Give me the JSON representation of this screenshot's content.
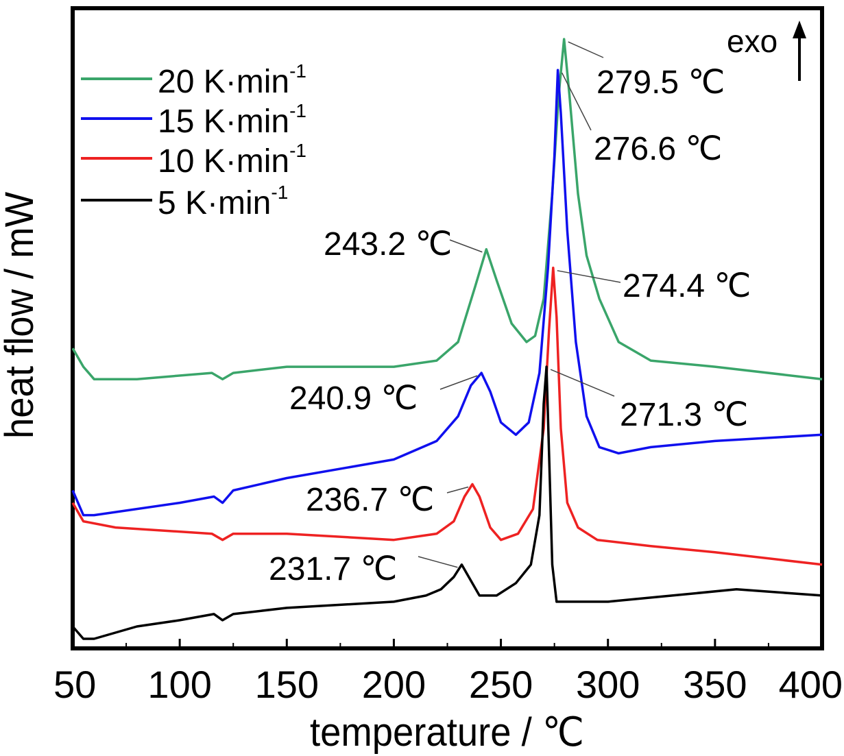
{
  "chart_data": {
    "type": "line",
    "xlabel": "temperature / ℃",
    "ylabel": "heat flow / mW",
    "xlim": [
      50,
      400
    ],
    "x_ticks": [
      50,
      100,
      150,
      200,
      250,
      300,
      350,
      400
    ],
    "y_ticks_shown": false,
    "grid": false,
    "legend_position": "top-left",
    "direction_label": "exo",
    "series": [
      {
        "name": "20 K·min",
        "superscript": "-1",
        "color": "#3aa56a",
        "points": [
          [
            50,
            0.47
          ],
          [
            55,
            0.44
          ],
          [
            60,
            0.42
          ],
          [
            80,
            0.42
          ],
          [
            115,
            0.43
          ],
          [
            120,
            0.42
          ],
          [
            125,
            0.43
          ],
          [
            150,
            0.44
          ],
          [
            200,
            0.44
          ],
          [
            220,
            0.45
          ],
          [
            230,
            0.48
          ],
          [
            238,
            0.57
          ],
          [
            243.2,
            0.63
          ],
          [
            248,
            0.58
          ],
          [
            255,
            0.51
          ],
          [
            262,
            0.48
          ],
          [
            266,
            0.49
          ],
          [
            270,
            0.55
          ],
          [
            274,
            0.72
          ],
          [
            277,
            0.88
          ],
          [
            279.5,
            0.97
          ],
          [
            282,
            0.88
          ],
          [
            286,
            0.72
          ],
          [
            290,
            0.62
          ],
          [
            296,
            0.55
          ],
          [
            305,
            0.48
          ],
          [
            320,
            0.45
          ],
          [
            350,
            0.44
          ],
          [
            400,
            0.42
          ]
        ]
      },
      {
        "name": "15 K·min",
        "superscript": "-1",
        "color": "#1010ee",
        "points": [
          [
            50,
            0.24
          ],
          [
            55,
            0.2
          ],
          [
            60,
            0.2
          ],
          [
            100,
            0.22
          ],
          [
            116,
            0.23
          ],
          [
            120,
            0.22
          ],
          [
            125,
            0.24
          ],
          [
            150,
            0.26
          ],
          [
            200,
            0.29
          ],
          [
            220,
            0.32
          ],
          [
            230,
            0.36
          ],
          [
            236,
            0.41
          ],
          [
            240.9,
            0.43
          ],
          [
            245,
            0.4
          ],
          [
            250,
            0.35
          ],
          [
            257,
            0.33
          ],
          [
            263,
            0.35
          ],
          [
            268,
            0.43
          ],
          [
            272,
            0.6
          ],
          [
            275,
            0.78
          ],
          [
            276.6,
            0.92
          ],
          [
            278,
            0.85
          ],
          [
            281,
            0.66
          ],
          [
            285,
            0.48
          ],
          [
            290,
            0.36
          ],
          [
            296,
            0.31
          ],
          [
            305,
            0.3
          ],
          [
            320,
            0.31
          ],
          [
            350,
            0.32
          ],
          [
            400,
            0.33
          ]
        ]
      },
      {
        "name": "10 K·min",
        "superscript": "-1",
        "color": "#ee2222",
        "points": [
          [
            50,
            0.22
          ],
          [
            55,
            0.19
          ],
          [
            70,
            0.18
          ],
          [
            115,
            0.17
          ],
          [
            120,
            0.16
          ],
          [
            125,
            0.17
          ],
          [
            150,
            0.17
          ],
          [
            200,
            0.16
          ],
          [
            220,
            0.17
          ],
          [
            228,
            0.19
          ],
          [
            233,
            0.23
          ],
          [
            236.7,
            0.25
          ],
          [
            240,
            0.23
          ],
          [
            245,
            0.18
          ],
          [
            250,
            0.16
          ],
          [
            258,
            0.17
          ],
          [
            265,
            0.21
          ],
          [
            270,
            0.34
          ],
          [
            272.5,
            0.5
          ],
          [
            274.4,
            0.6
          ],
          [
            276,
            0.52
          ],
          [
            278,
            0.34
          ],
          [
            281,
            0.22
          ],
          [
            286,
            0.18
          ],
          [
            295,
            0.16
          ],
          [
            320,
            0.15
          ],
          [
            350,
            0.14
          ],
          [
            400,
            0.12
          ]
        ]
      },
      {
        "name": "5 K·min",
        "superscript": "-1",
        "color": "#000000",
        "points": [
          [
            50,
            0.02
          ],
          [
            55,
            0.0
          ],
          [
            60,
            0.0
          ],
          [
            80,
            0.02
          ],
          [
            100,
            0.03
          ],
          [
            116,
            0.04
          ],
          [
            120,
            0.03
          ],
          [
            125,
            0.04
          ],
          [
            150,
            0.05
          ],
          [
            200,
            0.06
          ],
          [
            215,
            0.07
          ],
          [
            222,
            0.08
          ],
          [
            228,
            0.1
          ],
          [
            231.7,
            0.12
          ],
          [
            235,
            0.1
          ],
          [
            240,
            0.07
          ],
          [
            248,
            0.07
          ],
          [
            257,
            0.09
          ],
          [
            264,
            0.12
          ],
          [
            268,
            0.2
          ],
          [
            270,
            0.38
          ],
          [
            271.3,
            0.44
          ],
          [
            272.5,
            0.3
          ],
          [
            274,
            0.12
          ],
          [
            276,
            0.06
          ],
          [
            280,
            0.06
          ],
          [
            300,
            0.06
          ],
          [
            330,
            0.07
          ],
          [
            360,
            0.08
          ],
          [
            400,
            0.07
          ]
        ]
      }
    ],
    "annotations": [
      {
        "text": "279.5 ℃",
        "x": 279.5,
        "series": 0
      },
      {
        "text": "276.6 ℃",
        "x": 276.6,
        "series": 1
      },
      {
        "text": "243.2 ℃",
        "x": 243.2,
        "series": 0
      },
      {
        "text": "274.4 ℃",
        "x": 274.4,
        "series": 2
      },
      {
        "text": "240.9 ℃",
        "x": 240.9,
        "series": 1
      },
      {
        "text": "271.3 ℃",
        "x": 271.3,
        "series": 3
      },
      {
        "text": "236.7 ℃",
        "x": 236.7,
        "series": 2
      },
      {
        "text": "231.7 ℃",
        "x": 231.7,
        "series": 3
      }
    ]
  }
}
